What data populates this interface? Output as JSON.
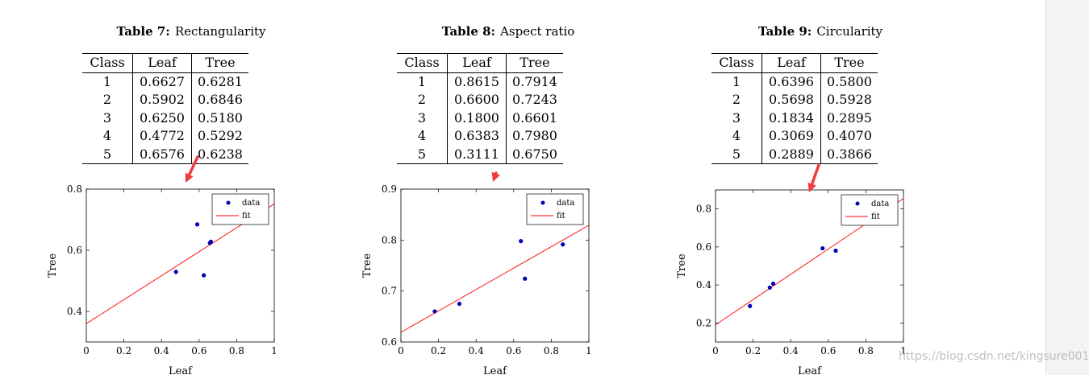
{
  "figures": [
    {
      "id": "rectangularity",
      "caption_num": "Table 7:",
      "caption_text": "Rectangularity",
      "table": {
        "headers": [
          "Class",
          "Leaf",
          "Tree"
        ],
        "rows": [
          [
            "1",
            "0.6627",
            "0.6281"
          ],
          [
            "2",
            "0.5902",
            "0.6846"
          ],
          [
            "3",
            "0.6250",
            "0.5180"
          ],
          [
            "4",
            "0.4772",
            "0.5292"
          ],
          [
            "5",
            "0.6576",
            "0.6238"
          ]
        ]
      },
      "chart_data": {
        "type": "scatter",
        "xlabel": "Leaf",
        "ylabel": "Tree",
        "xlim": [
          0,
          1
        ],
        "ylim": [
          0.3,
          0.8
        ],
        "xticks": [
          0,
          0.2,
          0.4,
          0.6,
          0.8,
          1
        ],
        "xtick_labels": [
          "0",
          "0.2",
          "0.4",
          "0.6",
          "0.8",
          "1"
        ],
        "yticks": [
          0.4,
          0.6,
          0.8
        ],
        "ytick_labels": [
          "0.4",
          "0.6",
          "0.8"
        ],
        "legend": [
          "data",
          "fit"
        ],
        "legend_position": "top-right",
        "points": [
          [
            0.6627,
            0.6281
          ],
          [
            0.5902,
            0.6846
          ],
          [
            0.625,
            0.518
          ],
          [
            0.4772,
            0.5292
          ],
          [
            0.6576,
            0.6238
          ]
        ],
        "fit": {
          "x": [
            0,
            1
          ],
          "y": [
            0.36,
            0.752
          ]
        },
        "colors": {
          "points": "#0000b4",
          "fit": "#ff0000"
        }
      }
    },
    {
      "id": "aspect-ratio",
      "caption_num": "Table 8:",
      "caption_text": "Aspect ratio",
      "table": {
        "headers": [
          "Class",
          "Leaf",
          "Tree"
        ],
        "rows": [
          [
            "1",
            "0.8615",
            "0.7914"
          ],
          [
            "2",
            "0.6600",
            "0.7243"
          ],
          [
            "3",
            "0.1800",
            "0.6601"
          ],
          [
            "4",
            "0.6383",
            "0.7980"
          ],
          [
            "5",
            "0.3111",
            "0.6750"
          ]
        ]
      },
      "chart_data": {
        "type": "scatter",
        "xlabel": "Leaf",
        "ylabel": "Tree",
        "xlim": [
          0,
          1
        ],
        "ylim": [
          0.6,
          0.9
        ],
        "xticks": [
          0,
          0.2,
          0.4,
          0.6,
          0.8,
          1
        ],
        "xtick_labels": [
          "0",
          "0.2",
          "0.4",
          "0.6",
          "0.8",
          "1"
        ],
        "yticks": [
          0.6,
          0.7,
          0.8,
          0.9
        ],
        "ytick_labels": [
          "0.6",
          "0.7",
          "0.8",
          "0.9"
        ],
        "legend": [
          "data",
          "fit"
        ],
        "legend_position": "top-right",
        "points": [
          [
            0.8615,
            0.7914
          ],
          [
            0.66,
            0.7243
          ],
          [
            0.18,
            0.6601
          ],
          [
            0.6383,
            0.798
          ],
          [
            0.3111,
            0.675
          ]
        ],
        "fit": {
          "x": [
            0,
            1
          ],
          "y": [
            0.619,
            0.829
          ]
        },
        "colors": {
          "points": "#0000b4",
          "fit": "#ff0000"
        }
      }
    },
    {
      "id": "circularity",
      "caption_num": "Table 9:",
      "caption_text": "Circularity",
      "table": {
        "headers": [
          "Class",
          "Leaf",
          "Tree"
        ],
        "rows": [
          [
            "1",
            "0.6396",
            "0.5800"
          ],
          [
            "2",
            "0.5698",
            "0.5928"
          ],
          [
            "3",
            "0.1834",
            "0.2895"
          ],
          [
            "4",
            "0.3069",
            "0.4070"
          ],
          [
            "5",
            "0.2889",
            "0.3866"
          ]
        ]
      },
      "chart_data": {
        "type": "scatter",
        "xlabel": "Leaf",
        "ylabel": "Tree",
        "xlim": [
          0,
          1
        ],
        "ylim": [
          0.1,
          0.9
        ],
        "xticks": [
          0,
          0.2,
          0.4,
          0.6,
          0.8,
          1
        ],
        "xtick_labels": [
          "0",
          "0.2",
          "0.4",
          "0.6",
          "0.8",
          "1"
        ],
        "yticks": [
          0.2,
          0.4,
          0.6,
          0.8
        ],
        "ytick_labels": [
          "0.2",
          "0.4",
          "0.6",
          "0.8"
        ],
        "legend": [
          "data",
          "fit"
        ],
        "legend_position": "top-right",
        "points": [
          [
            0.6396,
            0.58
          ],
          [
            0.5698,
            0.5928
          ],
          [
            0.1834,
            0.2895
          ],
          [
            0.3069,
            0.407
          ],
          [
            0.2889,
            0.3866
          ]
        ],
        "fit": {
          "x": [
            0,
            1
          ],
          "y": [
            0.19,
            0.855
          ]
        },
        "colors": {
          "points": "#0000b4",
          "fit": "#ff0000"
        }
      }
    }
  ],
  "annotation_color": "#f03c3c",
  "watermark": "https://blog.csdn.net/kingsure001"
}
